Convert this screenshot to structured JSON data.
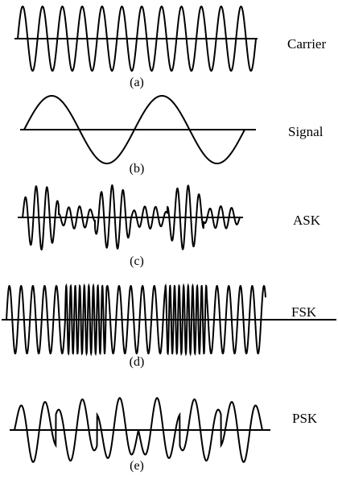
{
  "panels": [
    {
      "id": "carrier",
      "caption": "(a)",
      "label": "Carrier",
      "cycles": 12
    },
    {
      "id": "signal",
      "caption": "(b)",
      "label": "Signal",
      "cycles": 2
    },
    {
      "id": "ask",
      "caption": "(c)",
      "label": "ASK",
      "cycles": 20,
      "segment_amplitudes": [
        1,
        0.35,
        1,
        0.35,
        1,
        0.35
      ]
    },
    {
      "id": "fsk",
      "caption": "(d)",
      "label": "FSK",
      "segment_frequencies": [
        "low",
        "high",
        "low",
        "high",
        "low"
      ]
    },
    {
      "id": "psk",
      "caption": "(e)",
      "label": "PSK",
      "cycles": 10
    }
  ],
  "colors": {
    "line": "#000000",
    "background": "#ffffff"
  }
}
